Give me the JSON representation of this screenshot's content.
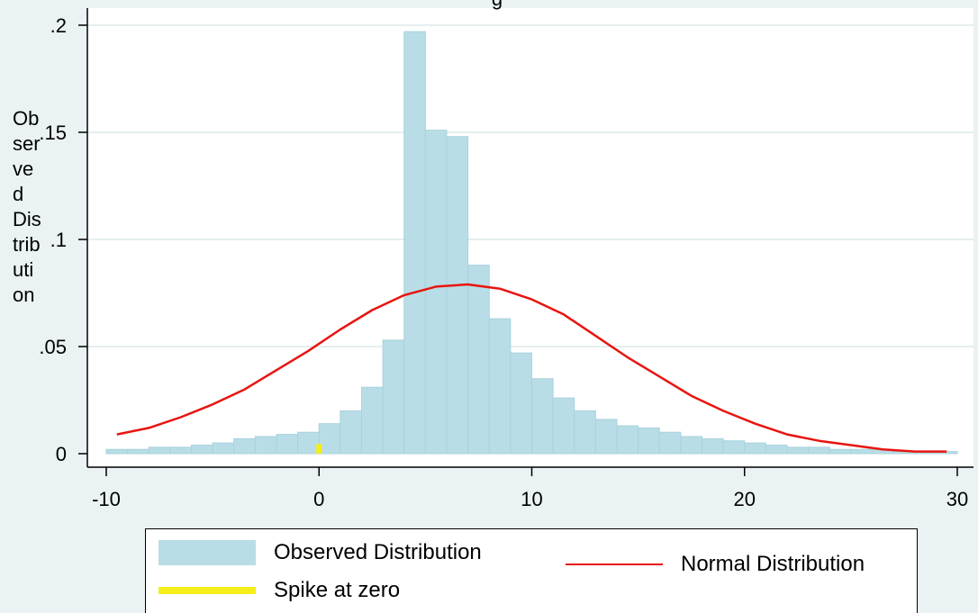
{
  "chart_data": {
    "type": "bar",
    "title": "",
    "ylabel": "Observed Distribution",
    "xlabel": "",
    "xlim": [
      -10,
      30
    ],
    "ylim": [
      0,
      0.2
    ],
    "bin_width": 1,
    "x_ticks": [
      -10,
      0,
      10,
      20,
      30
    ],
    "x_tick_labels": [
      "-10",
      "0",
      "10",
      "20",
      "30"
    ],
    "y_ticks": [
      0,
      0.05,
      0.1,
      0.15,
      0.2
    ],
    "y_tick_labels": [
      "0",
      ".05",
      ".1",
      ".15",
      ".2"
    ],
    "grid": true,
    "legend_position": "bottom",
    "series": [
      {
        "name": "Observed Distribution",
        "type": "histogram",
        "color": "#b8dde6",
        "bins_start": [
          -10,
          -9,
          -8,
          -7,
          -6,
          -5,
          -4,
          -3,
          -2,
          -1,
          0,
          1,
          2,
          3,
          4,
          5,
          6,
          7,
          8,
          9,
          10,
          11,
          12,
          13,
          14,
          15,
          16,
          17,
          18,
          19,
          20,
          21,
          22,
          23,
          24,
          25,
          26,
          27,
          28,
          29
        ],
        "values": [
          0.002,
          0.002,
          0.003,
          0.003,
          0.004,
          0.005,
          0.007,
          0.008,
          0.009,
          0.01,
          0.014,
          0.02,
          0.031,
          0.053,
          0.197,
          0.151,
          0.148,
          0.088,
          0.063,
          0.047,
          0.035,
          0.026,
          0.02,
          0.016,
          0.013,
          0.012,
          0.01,
          0.008,
          0.007,
          0.006,
          0.005,
          0.004,
          0.003,
          0.003,
          0.002,
          0.002,
          0.002,
          0.001,
          0.001,
          0.001
        ]
      },
      {
        "name": "Normal Distribution",
        "type": "line",
        "color": "#e8140f",
        "x": [
          -9.5,
          -8,
          -6.5,
          -5,
          -3.5,
          -2,
          -0.5,
          1,
          2.5,
          4,
          5.5,
          7,
          8.5,
          10,
          11.5,
          13,
          14.5,
          16,
          17.5,
          19,
          20.5,
          22,
          23.5,
          25,
          26.5,
          28,
          29.5
        ],
        "values": [
          0.009,
          0.012,
          0.017,
          0.023,
          0.03,
          0.039,
          0.048,
          0.058,
          0.067,
          0.074,
          0.078,
          0.079,
          0.077,
          0.072,
          0.065,
          0.055,
          0.045,
          0.036,
          0.027,
          0.02,
          0.014,
          0.009,
          0.006,
          0.004,
          0.002,
          0.001,
          0.001
        ]
      },
      {
        "name": "Spike at zero",
        "type": "spike",
        "color": "#f6ee18",
        "x": 0,
        "value": 0.0045
      }
    ]
  },
  "legend": {
    "observed": "Observed Distribution",
    "normal": "Normal Distribution",
    "spike": "Spike at zero"
  },
  "title_fragment": "g"
}
